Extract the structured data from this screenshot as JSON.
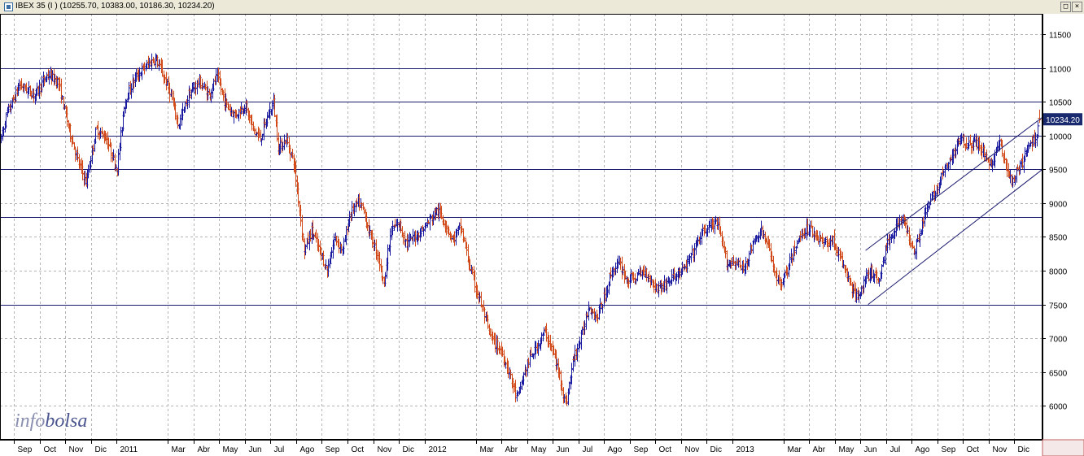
{
  "window": {
    "title": "IBEX 35 (I ) (10255.70, 10383.00, 10186.30, 10234.20)",
    "restore_glyph": "□",
    "close_glyph": "×"
  },
  "watermark": {
    "part1": "info",
    "part2": "bolsa"
  },
  "colors": {
    "up": "#1a1aa0",
    "down": "#d24a1a",
    "grid": "#b4b4b4",
    "hline": "#1a1a6e",
    "price_label_bg": "#1a2a6e"
  },
  "chart_data": {
    "type": "bar",
    "style": "ohlc",
    "title": "IBEX 35 (I ) (10255.70, 10383.00, 10186.30, 10234.20)",
    "last_price_label": "10234.20",
    "last": {
      "open": 10255.7,
      "high": 10383.0,
      "low": 10186.3,
      "close": 10234.2
    },
    "ylim": [
      5500,
      11800
    ],
    "y_ticks": [
      "11500",
      "11000",
      "10500",
      "10000",
      "9500",
      "9000",
      "8500",
      "8000",
      "7500",
      "7000",
      "6500",
      "6000"
    ],
    "x_labels": [
      "Sep",
      "Oct",
      "Nov",
      "Dic",
      "2011",
      "Mar",
      "Abr",
      "May",
      "Jun",
      "Jul",
      "Ago",
      "Sep",
      "Oct",
      "Nov",
      "Dic",
      "2012",
      "Mar",
      "Abr",
      "May",
      "Jun",
      "Jul",
      "Ago",
      "Sep",
      "Oct",
      "Nov",
      "Dic",
      "2013",
      "Mar",
      "Abr",
      "May",
      "Jun",
      "Jul",
      "Ago",
      "Sep",
      "Oct",
      "Nov",
      "Dic"
    ],
    "x_label_months": [
      0,
      1,
      2,
      3,
      4,
      6,
      7,
      8,
      9,
      10,
      11,
      12,
      13,
      14,
      15,
      16,
      18,
      19,
      20,
      21,
      22,
      23,
      24,
      25,
      26,
      27,
      28,
      30,
      31,
      32,
      33,
      34,
      35,
      36,
      37,
      38,
      39
    ],
    "x_range_months": [
      -0.55,
      40.1
    ],
    "grid": true,
    "horizontal_lines": [
      11000,
      10500,
      10000,
      9500,
      8800,
      7500
    ],
    "trend_channel": {
      "lower": [
        [
          33.3,
          7500
        ],
        [
          40.1,
          9500
        ]
      ],
      "upper": [
        [
          33.2,
          8300
        ],
        [
          40.1,
          10270
        ]
      ]
    },
    "series_path": [
      [
        -0.55,
        9900
      ],
      [
        -0.3,
        10300
      ],
      [
        0.2,
        10750
      ],
      [
        0.8,
        10600
      ],
      [
        1.3,
        10900
      ],
      [
        1.7,
        10800
      ],
      [
        2.1,
        10150
      ],
      [
        2.5,
        9600
      ],
      [
        2.8,
        9300
      ],
      [
        3.2,
        10100
      ],
      [
        3.6,
        9950
      ],
      [
        4.0,
        9500
      ],
      [
        4.3,
        10500
      ],
      [
        4.7,
        10850
      ],
      [
        5.2,
        11050
      ],
      [
        5.5,
        11150
      ],
      [
        5.8,
        10900
      ],
      [
        6.1,
        10600
      ],
      [
        6.4,
        10150
      ],
      [
        6.8,
        10600
      ],
      [
        7.2,
        10800
      ],
      [
        7.6,
        10600
      ],
      [
        7.9,
        10880
      ],
      [
        8.2,
        10500
      ],
      [
        8.6,
        10300
      ],
      [
        9.0,
        10450
      ],
      [
        9.3,
        10100
      ],
      [
        9.6,
        9950
      ],
      [
        9.9,
        10300
      ],
      [
        10.1,
        10500
      ],
      [
        10.3,
        9800
      ],
      [
        10.6,
        9950
      ],
      [
        10.9,
        9600
      ],
      [
        11.1,
        9000
      ],
      [
        11.3,
        8300
      ],
      [
        11.6,
        8600
      ],
      [
        11.9,
        8300
      ],
      [
        12.2,
        8000
      ],
      [
        12.5,
        8500
      ],
      [
        12.8,
        8300
      ],
      [
        13.1,
        8850
      ],
      [
        13.4,
        9000
      ],
      [
        13.6,
        8900
      ],
      [
        13.9,
        8500
      ],
      [
        14.2,
        8200
      ],
      [
        14.4,
        7800
      ],
      [
        14.7,
        8600
      ],
      [
        15.0,
        8700
      ],
      [
        15.3,
        8400
      ],
      [
        15.6,
        8500
      ],
      [
        15.9,
        8600
      ],
      [
        16.2,
        8750
      ],
      [
        16.5,
        8900
      ],
      [
        16.8,
        8700
      ],
      [
        17.1,
        8450
      ],
      [
        17.4,
        8650
      ],
      [
        17.8,
        8000
      ],
      [
        18.2,
        7500
      ],
      [
        18.6,
        7000
      ],
      [
        19.0,
        6800
      ],
      [
        19.3,
        6500
      ],
      [
        19.6,
        6100
      ],
      [
        19.9,
        6500
      ],
      [
        20.1,
        6700
      ],
      [
        20.4,
        6900
      ],
      [
        20.7,
        7100
      ],
      [
        21.0,
        6800
      ],
      [
        21.3,
        6400
      ],
      [
        21.5,
        6000
      ],
      [
        21.8,
        6700
      ],
      [
        22.1,
        7000
      ],
      [
        22.4,
        7500
      ],
      [
        22.7,
        7300
      ],
      [
        23.0,
        7600
      ],
      [
        23.3,
        8000
      ],
      [
        23.6,
        8100
      ],
      [
        23.9,
        7850
      ],
      [
        24.2,
        7900
      ],
      [
        24.6,
        8000
      ],
      [
        25.0,
        7750
      ],
      [
        25.4,
        7800
      ],
      [
        25.8,
        7950
      ],
      [
        26.1,
        8000
      ],
      [
        26.5,
        8300
      ],
      [
        26.8,
        8550
      ],
      [
        27.1,
        8650
      ],
      [
        27.4,
        8700
      ],
      [
        27.8,
        8100
      ],
      [
        28.1,
        8150
      ],
      [
        28.4,
        8000
      ],
      [
        28.7,
        8300
      ],
      [
        29.1,
        8600
      ],
      [
        29.4,
        8350
      ],
      [
        29.8,
        7800
      ],
      [
        30.1,
        7950
      ],
      [
        30.4,
        8300
      ],
      [
        30.7,
        8550
      ],
      [
        31.0,
        8650
      ],
      [
        31.3,
        8500
      ],
      [
        31.6,
        8400
      ],
      [
        31.9,
        8450
      ],
      [
        32.2,
        8200
      ],
      [
        32.5,
        7900
      ],
      [
        32.8,
        7600
      ],
      [
        33.1,
        7800
      ],
      [
        33.4,
        8000
      ],
      [
        33.7,
        7850
      ],
      [
        34.0,
        8350
      ],
      [
        34.3,
        8600
      ],
      [
        34.6,
        8800
      ],
      [
        34.8,
        8600
      ],
      [
        35.1,
        8300
      ],
      [
        35.4,
        8700
      ],
      [
        35.7,
        9000
      ],
      [
        36.0,
        9250
      ],
      [
        36.3,
        9500
      ],
      [
        36.6,
        9700
      ],
      [
        36.9,
        10000
      ],
      [
        37.2,
        9850
      ],
      [
        37.5,
        9900
      ],
      [
        37.8,
        9750
      ],
      [
        38.1,
        9550
      ],
      [
        38.4,
        9900
      ],
      [
        38.7,
        9500
      ],
      [
        38.9,
        9300
      ],
      [
        39.2,
        9500
      ],
      [
        39.5,
        9800
      ],
      [
        39.8,
        9950
      ],
      [
        40.0,
        10234
      ]
    ]
  }
}
